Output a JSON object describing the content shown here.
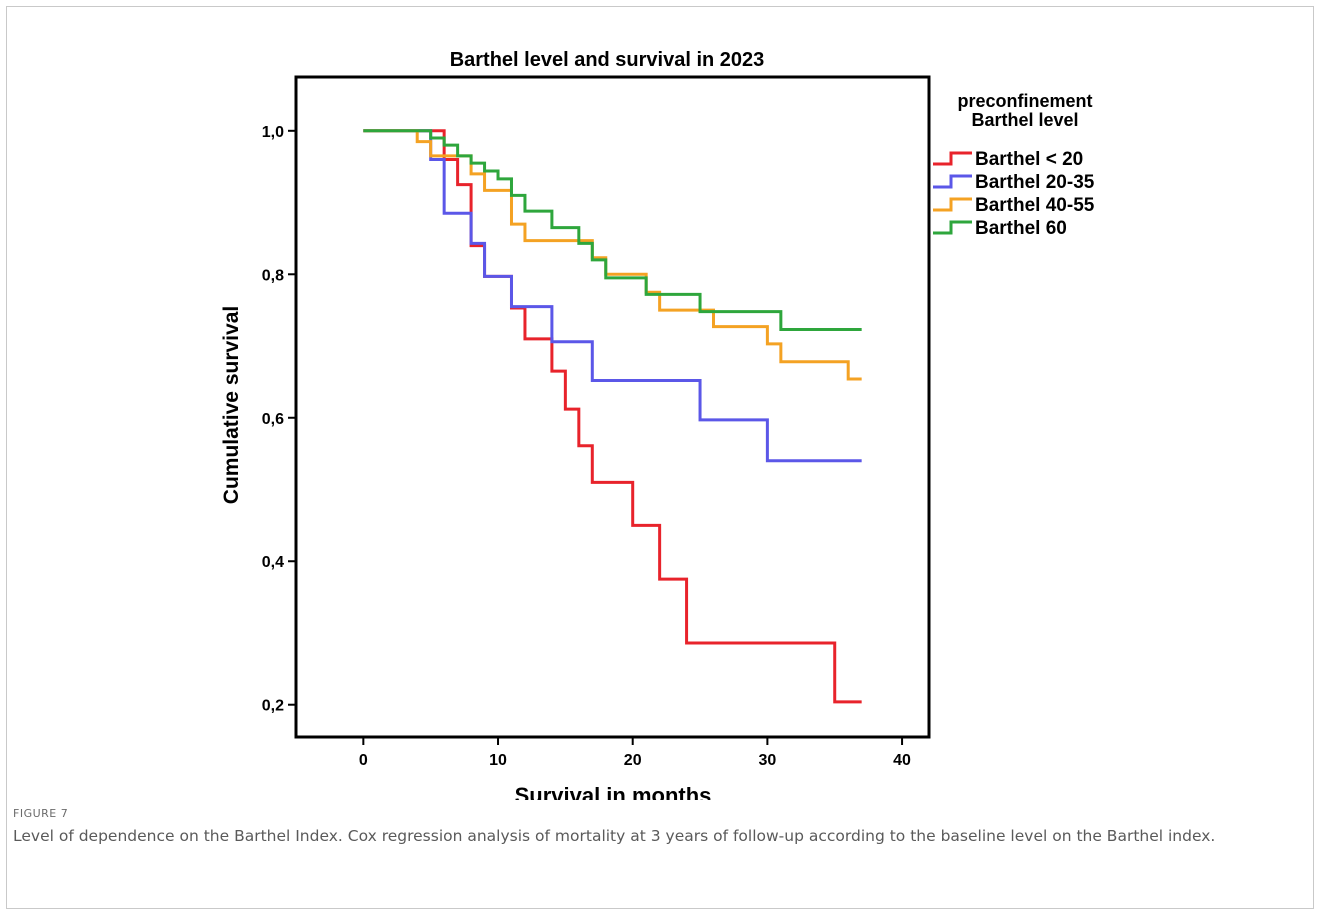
{
  "chart_data": {
    "type": "line",
    "step": true,
    "title": "Barthel level and survival in 2023",
    "xlabel": "Survival in months",
    "ylabel": "Cumulative survival",
    "xlim": [
      -5,
      42
    ],
    "ylim": [
      0.155,
      1.075
    ],
    "xticks": [
      0,
      10,
      20,
      30,
      40
    ],
    "xtick_labels": [
      "0",
      "10",
      "20",
      "30",
      "40"
    ],
    "yticks": [
      0.2,
      0.4,
      0.6,
      0.8,
      1.0
    ],
    "ytick_labels": [
      "0,2",
      "0,4",
      "0,6",
      "0,8",
      "1,0"
    ],
    "grid": false,
    "legend_title_lines": [
      "preconfinement",
      "Barthel level"
    ],
    "legend_placement": "right, outside plot",
    "series": [
      {
        "name": "Barthel < 20",
        "color": "#e8232b",
        "x": [
          0,
          6,
          7,
          8,
          9,
          11,
          12,
          14,
          15,
          16,
          17,
          20,
          22,
          24,
          35,
          37
        ],
        "y": [
          1.0,
          0.96,
          0.925,
          0.84,
          0.797,
          0.753,
          0.71,
          0.665,
          0.612,
          0.561,
          0.51,
          0.45,
          0.375,
          0.286,
          0.204,
          0.204
        ]
      },
      {
        "name": "Barthel 20-35",
        "color": "#5b57e8",
        "x": [
          0,
          5,
          6,
          8,
          9,
          11,
          14,
          17,
          25,
          30,
          37
        ],
        "y": [
          1.0,
          0.96,
          0.885,
          0.843,
          0.797,
          0.755,
          0.706,
          0.652,
          0.597,
          0.54,
          0.54
        ]
      },
      {
        "name": "Barthel 40-55",
        "color": "#f4a223",
        "x": [
          0,
          4,
          5,
          8,
          9,
          11,
          12,
          17,
          18,
          21,
          22,
          25,
          26,
          30,
          31,
          36,
          37
        ],
        "y": [
          1.0,
          0.985,
          0.965,
          0.94,
          0.917,
          0.87,
          0.847,
          0.823,
          0.8,
          0.775,
          0.75,
          0.75,
          0.727,
          0.703,
          0.678,
          0.654,
          0.654
        ]
      },
      {
        "name": "Barthel 60",
        "color": "#2ea63c",
        "x": [
          0,
          5,
          6,
          7,
          8,
          9,
          10,
          11,
          12,
          14,
          16,
          17,
          18,
          21,
          25,
          31,
          37
        ],
        "y": [
          1.0,
          0.99,
          0.98,
          0.965,
          0.955,
          0.944,
          0.933,
          0.91,
          0.888,
          0.865,
          0.843,
          0.82,
          0.795,
          0.772,
          0.748,
          0.723,
          0.723
        ]
      }
    ]
  },
  "caption": {
    "label": "FIGURE 7",
    "text": "Level of dependence on the Barthel Index. Cox regression analysis of mortality at 3 years of follow-up according to the baseline level on the Barthel index."
  }
}
